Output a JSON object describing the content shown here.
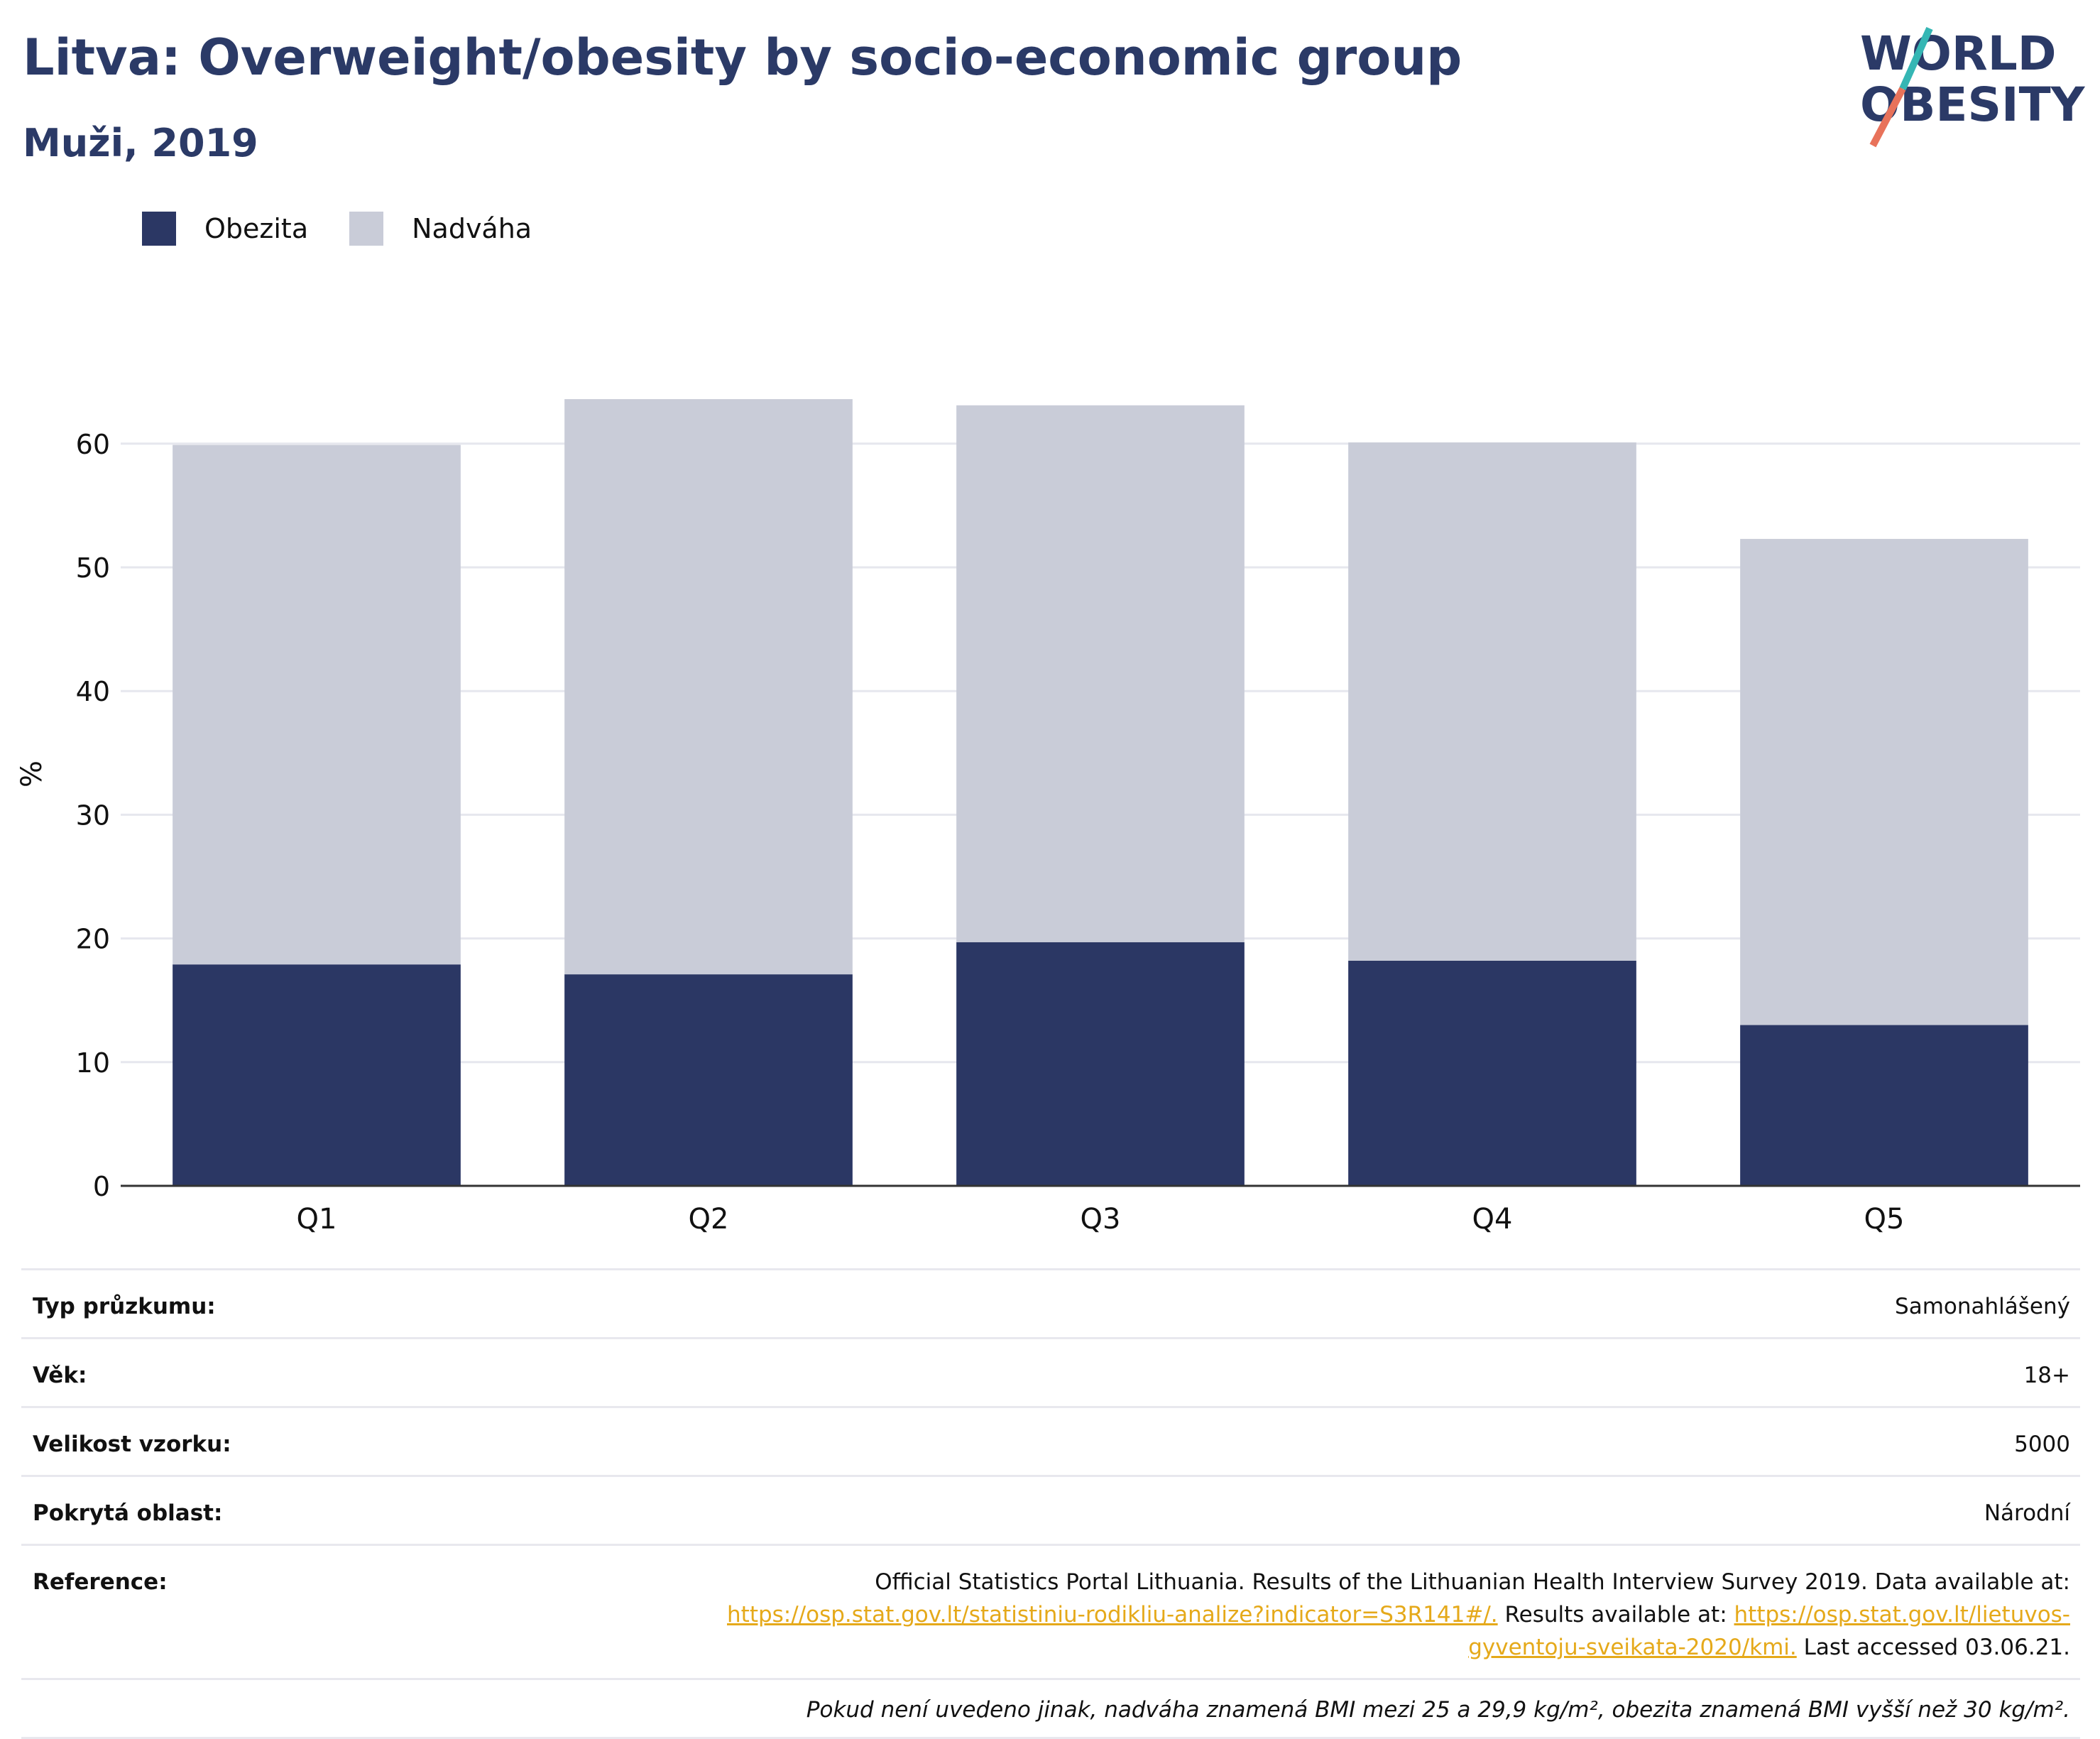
{
  "header": {
    "title": "Litva: Overweight/obesity by socio-economic group",
    "subtitle": "Muži, 2019"
  },
  "logo": {
    "line1": "WORLD",
    "line2": "OBESITY"
  },
  "colors": {
    "obesity": "#2b3764",
    "overweight": "#c9ccd8",
    "title": "#2b3a67",
    "link": "#e5a91a"
  },
  "chart_data": {
    "type": "bar",
    "stacked": true,
    "categories": [
      "Q1",
      "Q2",
      "Q3",
      "Q4",
      "Q5"
    ],
    "series": [
      {
        "name": "Obezita",
        "values": [
          17.9,
          17.1,
          19.7,
          18.2,
          13.0
        ]
      },
      {
        "name": "Nadváha",
        "values": [
          42.0,
          46.5,
          43.4,
          41.9,
          39.3
        ]
      }
    ],
    "ylabel": "%",
    "ylim": [
      0,
      70
    ],
    "yticks": [
      0,
      10,
      20,
      30,
      40,
      50,
      60
    ],
    "grid": true,
    "legend": "top-left"
  },
  "info": {
    "survey_label": "Typ průzkumu:",
    "survey_value": "Samonahlášený",
    "age_label": "Věk:",
    "age_value": "18+",
    "sample_label": "Velikost vzorku:",
    "sample_value": "5000",
    "area_label": "Pokrytá oblast:",
    "area_value": "Národní",
    "ref_label": "Reference:",
    "ref_text1": "Official Statistics Portal Lithuania. Results of the Lithuanian Health Interview Survey 2019. Data available at: ",
    "ref_link1": "https://osp.stat.gov.lt/statistiniu-rodikliu-analize?indicator=S3R141#/.",
    "ref_text2": " Results available at: ",
    "ref_link2": "https://osp.stat.gov.lt/lietuvos-gyventoju-sveikata-2020/kmi.",
    "ref_text3": " Last accessed 03.06.21.",
    "note": "Pokud není uvedeno jinak, nadváha znamená BMI mezi 25 a 29,9 kg/m², obezita znamená BMI vyšší než 30 kg/m²."
  }
}
